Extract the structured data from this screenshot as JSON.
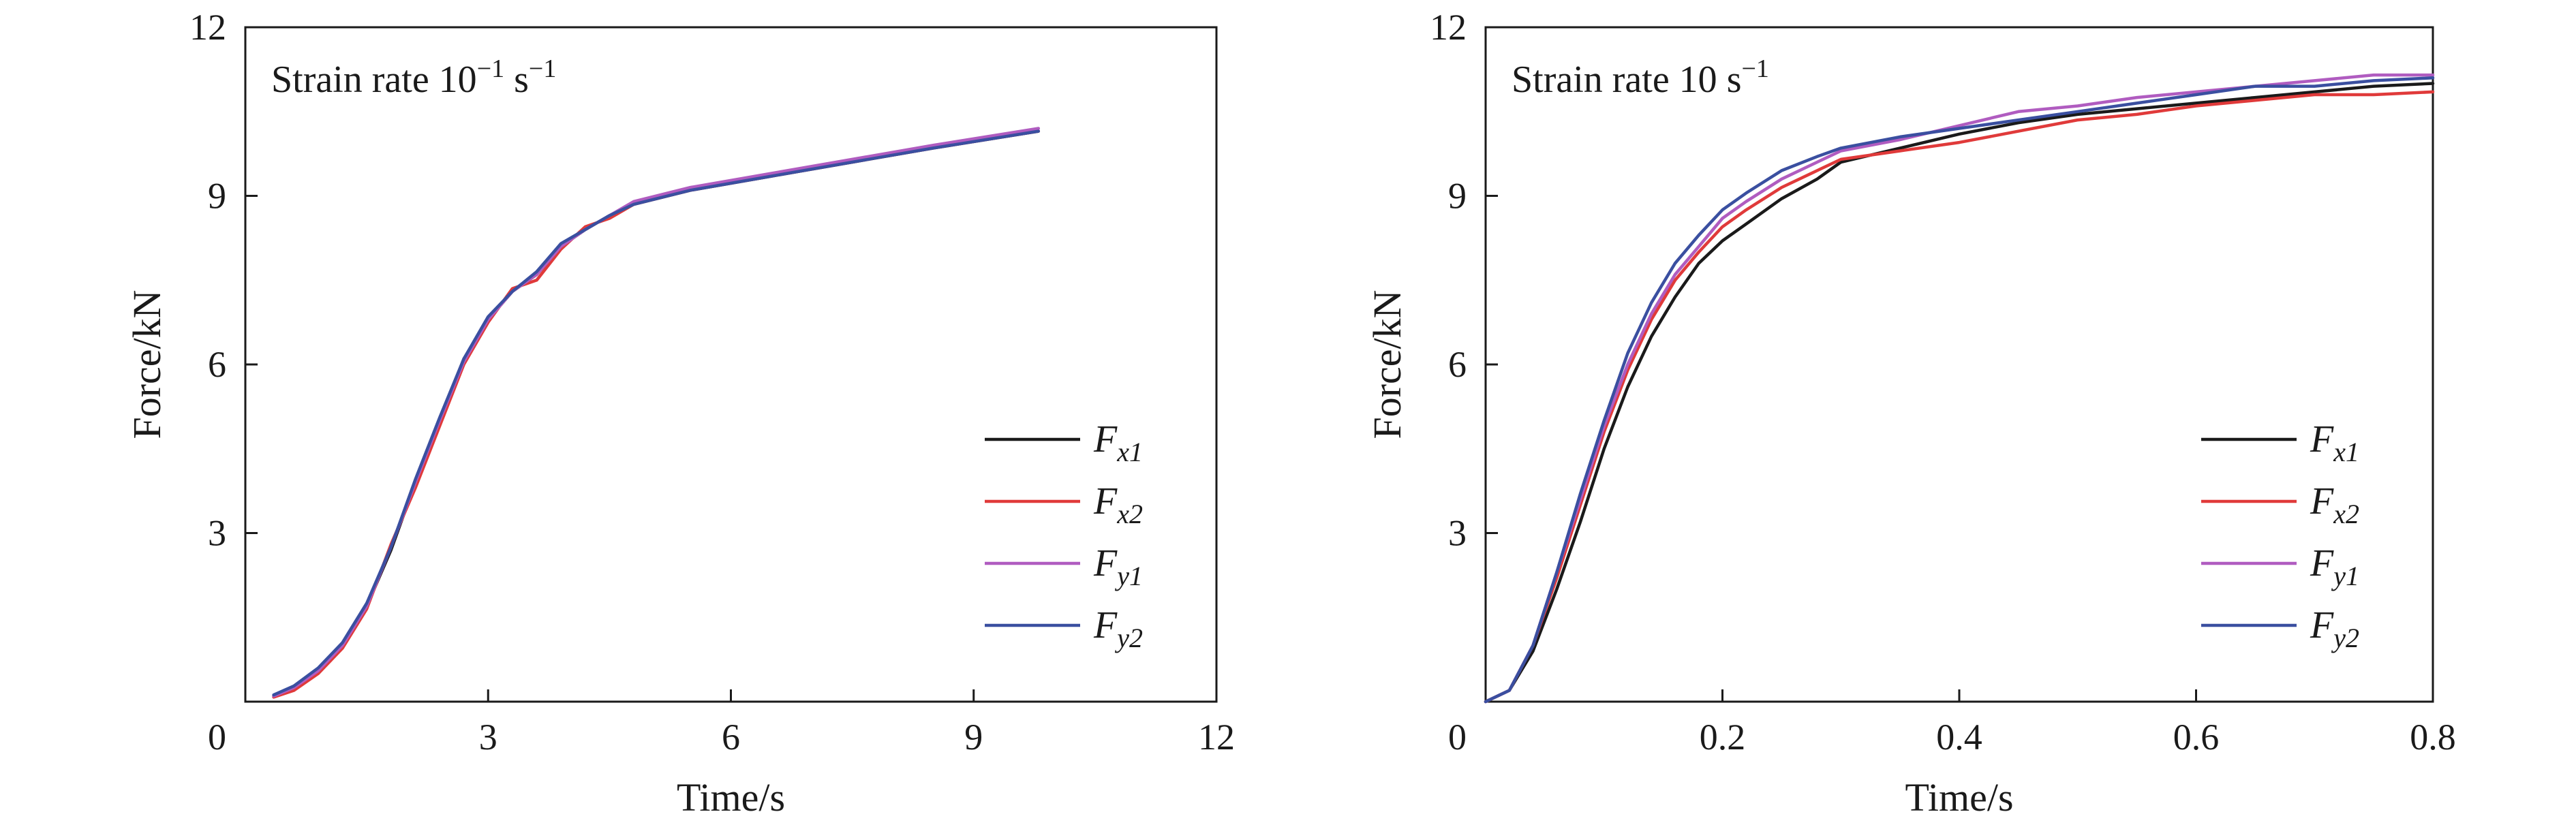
{
  "chart_data": [
    {
      "type": "line",
      "annotation": {
        "prefix": "Strain rate 10",
        "sup": "−1",
        "unit": " s",
        "unit_sup": "−1"
      },
      "xlabel": "Time/s",
      "ylabel": "Force/kN",
      "xlim": [
        0,
        12
      ],
      "ylim": [
        0,
        12
      ],
      "xticks": [
        0,
        3,
        6,
        9,
        12
      ],
      "xtick_labels": [
        "0",
        "3",
        "6",
        "9",
        "12"
      ],
      "yticks": [
        3,
        6,
        9,
        12
      ],
      "ytick_labels": [
        "3",
        "6",
        "9",
        "12"
      ],
      "legend_position": "bottom-right",
      "grid": false,
      "series": [
        {
          "name": "F",
          "sub": "x1",
          "color": "#1a1a1a",
          "x": [
            0.35,
            0.6,
            0.9,
            1.2,
            1.5,
            1.8,
            2.1,
            2.4,
            2.7,
            3.0,
            3.3,
            3.6,
            3.9,
            4.2,
            4.5,
            4.8,
            5.5,
            6.5,
            7.5,
            8.5,
            9.8
          ],
          "y": [
            0.1,
            0.25,
            0.55,
            1.0,
            1.7,
            2.7,
            3.9,
            5.0,
            6.1,
            6.8,
            7.3,
            7.6,
            8.1,
            8.4,
            8.65,
            8.85,
            9.1,
            9.35,
            9.6,
            9.85,
            10.15
          ]
        },
        {
          "name": "F",
          "sub": "x2",
          "color": "#e03a3a",
          "x": [
            0.35,
            0.6,
            0.9,
            1.2,
            1.5,
            1.8,
            2.1,
            2.4,
            2.7,
            3.0,
            3.3,
            3.6,
            3.9,
            4.2,
            4.5,
            4.8,
            5.5,
            6.5,
            7.5,
            8.5,
            9.8
          ],
          "y": [
            0.08,
            0.2,
            0.5,
            0.95,
            1.65,
            2.8,
            3.8,
            4.9,
            6.0,
            6.75,
            7.35,
            7.5,
            8.05,
            8.45,
            8.6,
            8.85,
            9.1,
            9.35,
            9.6,
            9.85,
            10.15
          ]
        },
        {
          "name": "F",
          "sub": "y1",
          "color": "#b05cc0",
          "x": [
            0.35,
            0.6,
            0.9,
            1.2,
            1.5,
            1.8,
            2.1,
            2.4,
            2.7,
            3.0,
            3.3,
            3.6,
            3.9,
            4.2,
            4.5,
            4.8,
            5.5,
            6.5,
            7.5,
            8.5,
            9.8
          ],
          "y": [
            0.1,
            0.25,
            0.55,
            1.0,
            1.7,
            2.75,
            3.9,
            5.0,
            6.05,
            6.8,
            7.3,
            7.6,
            8.1,
            8.4,
            8.65,
            8.9,
            9.15,
            9.4,
            9.65,
            9.9,
            10.2
          ]
        },
        {
          "name": "F",
          "sub": "y2",
          "color": "#3a4fa0",
          "x": [
            0.35,
            0.6,
            0.9,
            1.2,
            1.5,
            1.8,
            2.1,
            2.4,
            2.7,
            3.0,
            3.3,
            3.6,
            3.9,
            4.2,
            4.5,
            4.8,
            5.5,
            6.5,
            7.5,
            8.5,
            9.8
          ],
          "y": [
            0.12,
            0.28,
            0.6,
            1.05,
            1.75,
            2.75,
            3.95,
            5.05,
            6.1,
            6.85,
            7.3,
            7.65,
            8.15,
            8.4,
            8.65,
            8.85,
            9.1,
            9.35,
            9.6,
            9.85,
            10.15
          ]
        }
      ]
    },
    {
      "type": "line",
      "annotation": {
        "prefix": "Strain rate 10",
        "sup": "",
        "unit": " s",
        "unit_sup": "−1"
      },
      "xlabel": "Time/s",
      "ylabel": "Force/kN",
      "xlim": [
        0,
        0.8
      ],
      "ylim": [
        0,
        12
      ],
      "xticks": [
        0,
        0.2,
        0.4,
        0.6,
        0.8
      ],
      "xtick_labels": [
        "0",
        "0.2",
        "0.4",
        "0.6",
        "0.8"
      ],
      "yticks": [
        3,
        6,
        9,
        12
      ],
      "ytick_labels": [
        "3",
        "6",
        "9",
        "12"
      ],
      "legend_position": "bottom-right",
      "grid": false,
      "series": [
        {
          "name": "F",
          "sub": "x1",
          "color": "#1a1a1a",
          "x": [
            0.0,
            0.02,
            0.04,
            0.06,
            0.08,
            0.1,
            0.12,
            0.14,
            0.16,
            0.18,
            0.2,
            0.22,
            0.25,
            0.28,
            0.3,
            0.35,
            0.4,
            0.45,
            0.5,
            0.55,
            0.6,
            0.65,
            0.7,
            0.75,
            0.8
          ],
          "y": [
            0.0,
            0.2,
            0.9,
            2.0,
            3.2,
            4.5,
            5.6,
            6.5,
            7.2,
            7.8,
            8.2,
            8.5,
            8.95,
            9.3,
            9.6,
            9.85,
            10.1,
            10.3,
            10.45,
            10.55,
            10.65,
            10.75,
            10.85,
            10.95,
            11.0
          ]
        },
        {
          "name": "F",
          "sub": "x2",
          "color": "#e03a3a",
          "x": [
            0.0,
            0.02,
            0.04,
            0.06,
            0.08,
            0.1,
            0.12,
            0.14,
            0.16,
            0.18,
            0.2,
            0.22,
            0.25,
            0.28,
            0.3,
            0.35,
            0.4,
            0.45,
            0.5,
            0.55,
            0.6,
            0.65,
            0.7,
            0.75,
            0.8
          ],
          "y": [
            0.0,
            0.2,
            1.0,
            2.2,
            3.5,
            4.8,
            5.9,
            6.8,
            7.5,
            8.0,
            8.45,
            8.75,
            9.15,
            9.45,
            9.65,
            9.8,
            9.95,
            10.15,
            10.35,
            10.45,
            10.6,
            10.7,
            10.8,
            10.8,
            10.85
          ]
        },
        {
          "name": "F",
          "sub": "y1",
          "color": "#b05cc0",
          "x": [
            0.0,
            0.02,
            0.04,
            0.06,
            0.08,
            0.1,
            0.12,
            0.14,
            0.16,
            0.18,
            0.2,
            0.22,
            0.25,
            0.28,
            0.3,
            0.35,
            0.4,
            0.45,
            0.5,
            0.55,
            0.6,
            0.65,
            0.7,
            0.75,
            0.8
          ],
          "y": [
            0.0,
            0.2,
            1.0,
            2.3,
            3.6,
            4.9,
            6.0,
            6.9,
            7.6,
            8.1,
            8.6,
            8.9,
            9.3,
            9.6,
            9.8,
            10.0,
            10.25,
            10.5,
            10.6,
            10.75,
            10.85,
            10.95,
            11.05,
            11.15,
            11.15
          ]
        },
        {
          "name": "F",
          "sub": "y2",
          "color": "#3a4fa0",
          "x": [
            0.0,
            0.02,
            0.04,
            0.06,
            0.08,
            0.1,
            0.12,
            0.14,
            0.16,
            0.18,
            0.2,
            0.22,
            0.25,
            0.28,
            0.3,
            0.35,
            0.4,
            0.45,
            0.5,
            0.55,
            0.6,
            0.65,
            0.7,
            0.75,
            0.8
          ],
          "y": [
            0.0,
            0.2,
            1.0,
            2.3,
            3.7,
            5.0,
            6.2,
            7.1,
            7.8,
            8.3,
            8.75,
            9.05,
            9.45,
            9.7,
            9.85,
            10.05,
            10.2,
            10.35,
            10.5,
            10.65,
            10.8,
            10.95,
            10.95,
            11.05,
            11.1
          ]
        }
      ]
    }
  ]
}
